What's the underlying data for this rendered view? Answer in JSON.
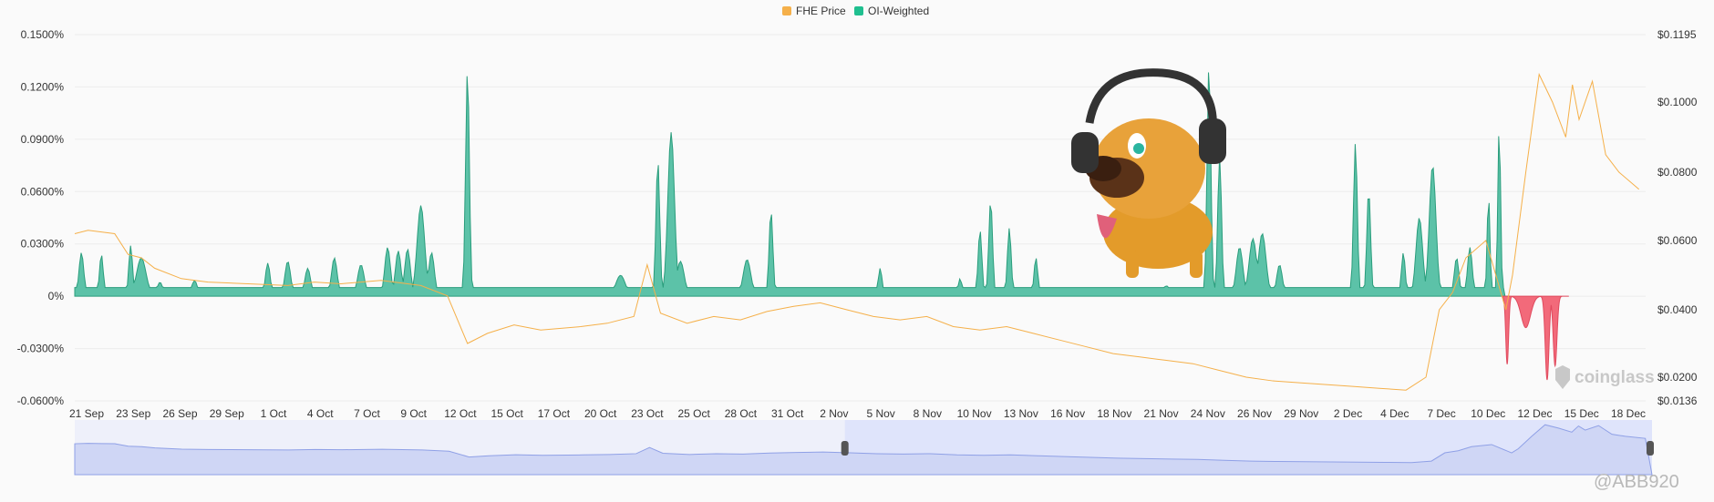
{
  "chart_data": {
    "type": "area",
    "legend": [
      {
        "name": "FHE Price",
        "color": "#f5b04a"
      },
      {
        "name": "OI-Weighted",
        "color": "#1fbf8f"
      }
    ],
    "legend_position": "top-center",
    "y_left": {
      "ticks": [
        "0.1500%",
        "0.1200%",
        "0.0900%",
        "0.0600%",
        "0.0300%",
        "0%",
        "-0.0300%",
        "-0.0600%"
      ],
      "range": [
        -0.06,
        0.15
      ]
    },
    "y_right": {
      "ticks": [
        "$0.1195",
        "$0.1000",
        "$0.0800",
        "$0.0600",
        "$0.0400",
        "$0.0200",
        "$0.0136"
      ],
      "range": [
        0.0136,
        0.1195
      ]
    },
    "x_ticks": [
      "21 Sep",
      "23 Sep",
      "26 Sep",
      "29 Sep",
      "1 Oct",
      "4 Oct",
      "7 Oct",
      "9 Oct",
      "12 Oct",
      "15 Oct",
      "17 Oct",
      "20 Oct",
      "23 Oct",
      "25 Oct",
      "28 Oct",
      "31 Oct",
      "2 Nov",
      "5 Nov",
      "8 Nov",
      "10 Nov",
      "13 Nov",
      "16 Nov",
      "18 Nov",
      "21 Nov",
      "24 Nov",
      "26 Nov",
      "29 Nov",
      "2 Dec",
      "4 Dec",
      "7 Dec",
      "10 Dec",
      "12 Dec",
      "15 Dec",
      "18 Dec"
    ],
    "x_range_days": 89,
    "oi_peaks": [
      [
        0.5,
        0.025,
        0.25
      ],
      [
        2.0,
        0.024,
        0.2
      ],
      [
        4.2,
        0.029,
        0.2
      ],
      [
        5.0,
        0.022,
        0.5
      ],
      [
        6.4,
        0.008,
        0.3
      ],
      [
        9.0,
        0.009,
        0.3
      ],
      [
        14.5,
        0.019,
        0.25
      ],
      [
        16.0,
        0.02,
        0.3
      ],
      [
        17.5,
        0.016,
        0.3
      ],
      [
        19.5,
        0.022,
        0.3
      ],
      [
        21.5,
        0.018,
        0.35
      ],
      [
        23.5,
        0.028,
        0.3
      ],
      [
        24.3,
        0.026,
        0.3
      ],
      [
        25.0,
        0.027,
        0.3
      ],
      [
        26.0,
        0.052,
        0.4
      ],
      [
        26.8,
        0.025,
        0.3
      ],
      [
        29.5,
        0.13,
        0.2
      ],
      [
        41.0,
        0.012,
        0.5
      ],
      [
        43.8,
        0.078,
        0.2
      ],
      [
        44.8,
        0.094,
        0.35
      ],
      [
        45.5,
        0.02,
        0.4
      ],
      [
        50.5,
        0.021,
        0.4
      ],
      [
        52.3,
        0.049,
        0.2
      ],
      [
        60.5,
        0.016,
        0.2
      ],
      [
        66.5,
        0.01,
        0.2
      ],
      [
        68.0,
        0.038,
        0.2
      ],
      [
        68.8,
        0.055,
        0.2
      ],
      [
        70.2,
        0.039,
        0.2
      ],
      [
        72.2,
        0.022,
        0.2
      ],
      [
        82.0,
        0.006,
        0.3
      ],
      [
        85.2,
        0.133,
        0.2
      ],
      [
        86.0,
        0.081,
        0.2
      ],
      [
        87.5,
        0.028,
        0.35
      ],
      [
        88.5,
        0.033,
        0.4
      ],
      [
        89.2,
        0.036,
        0.4
      ],
      [
        90.5,
        0.018,
        0.3
      ],
      [
        96.2,
        0.088,
        0.2
      ],
      [
        97.2,
        0.061,
        0.2
      ],
      [
        99.8,
        0.025,
        0.2
      ],
      [
        101.0,
        0.045,
        0.35
      ],
      [
        102.0,
        0.075,
        0.35
      ],
      [
        103.8,
        0.022,
        0.25
      ],
      [
        104.8,
        0.028,
        0.25
      ],
      [
        106.2,
        0.058,
        0.15
      ],
      [
        107.0,
        0.098,
        0.15
      ]
    ],
    "oi_negative": [
      [
        107.6,
        -0.039,
        0.15
      ],
      [
        109.0,
        -0.018,
        0.5
      ],
      [
        110.6,
        -0.048,
        0.2
      ],
      [
        111.2,
        -0.04,
        0.2
      ]
    ],
    "oi_baseline": 0.005,
    "price": [
      [
        0,
        0.062
      ],
      [
        1,
        0.063
      ],
      [
        2,
        0.0625
      ],
      [
        3,
        0.062
      ],
      [
        4,
        0.056
      ],
      [
        5,
        0.055
      ],
      [
        6,
        0.052
      ],
      [
        8,
        0.049
      ],
      [
        10,
        0.048
      ],
      [
        13,
        0.0475
      ],
      [
        16,
        0.047
      ],
      [
        18,
        0.048
      ],
      [
        20,
        0.0475
      ],
      [
        23,
        0.0485
      ],
      [
        26,
        0.047
      ],
      [
        28,
        0.044
      ],
      [
        29.5,
        0.03
      ],
      [
        31,
        0.033
      ],
      [
        33,
        0.0355
      ],
      [
        35,
        0.034
      ],
      [
        38,
        0.035
      ],
      [
        40,
        0.036
      ],
      [
        42,
        0.038
      ],
      [
        43,
        0.053
      ],
      [
        44,
        0.039
      ],
      [
        46,
        0.036
      ],
      [
        48,
        0.038
      ],
      [
        50,
        0.037
      ],
      [
        52,
        0.0395
      ],
      [
        54,
        0.041
      ],
      [
        56,
        0.042
      ],
      [
        58,
        0.04
      ],
      [
        60,
        0.038
      ],
      [
        62,
        0.037
      ],
      [
        64,
        0.038
      ],
      [
        66,
        0.035
      ],
      [
        68,
        0.034
      ],
      [
        70,
        0.035
      ],
      [
        72,
        0.033
      ],
      [
        74,
        0.031
      ],
      [
        76,
        0.029
      ],
      [
        78,
        0.027
      ],
      [
        80,
        0.026
      ],
      [
        82,
        0.025
      ],
      [
        84,
        0.024
      ],
      [
        86,
        0.022
      ],
      [
        88,
        0.02
      ],
      [
        90,
        0.019
      ],
      [
        92,
        0.0185
      ],
      [
        94,
        0.018
      ],
      [
        96,
        0.0175
      ],
      [
        98,
        0.017
      ],
      [
        100,
        0.0165
      ],
      [
        101.5,
        0.02
      ],
      [
        102.5,
        0.04
      ],
      [
        103.5,
        0.045
      ],
      [
        104.5,
        0.055
      ],
      [
        106,
        0.06
      ],
      [
        107.5,
        0.04
      ],
      [
        108,
        0.05
      ],
      [
        109,
        0.08
      ],
      [
        110,
        0.108
      ],
      [
        111,
        0.1
      ],
      [
        112,
        0.09
      ],
      [
        112.5,
        0.105
      ],
      [
        113,
        0.095
      ],
      [
        114,
        0.106
      ],
      [
        115,
        0.085
      ],
      [
        116,
        0.08
      ],
      [
        117.5,
        0.075
      ]
    ],
    "navigator_split": 0.49
  },
  "branding": {
    "watermark": "coinglass",
    "handle": "@ABB920"
  }
}
